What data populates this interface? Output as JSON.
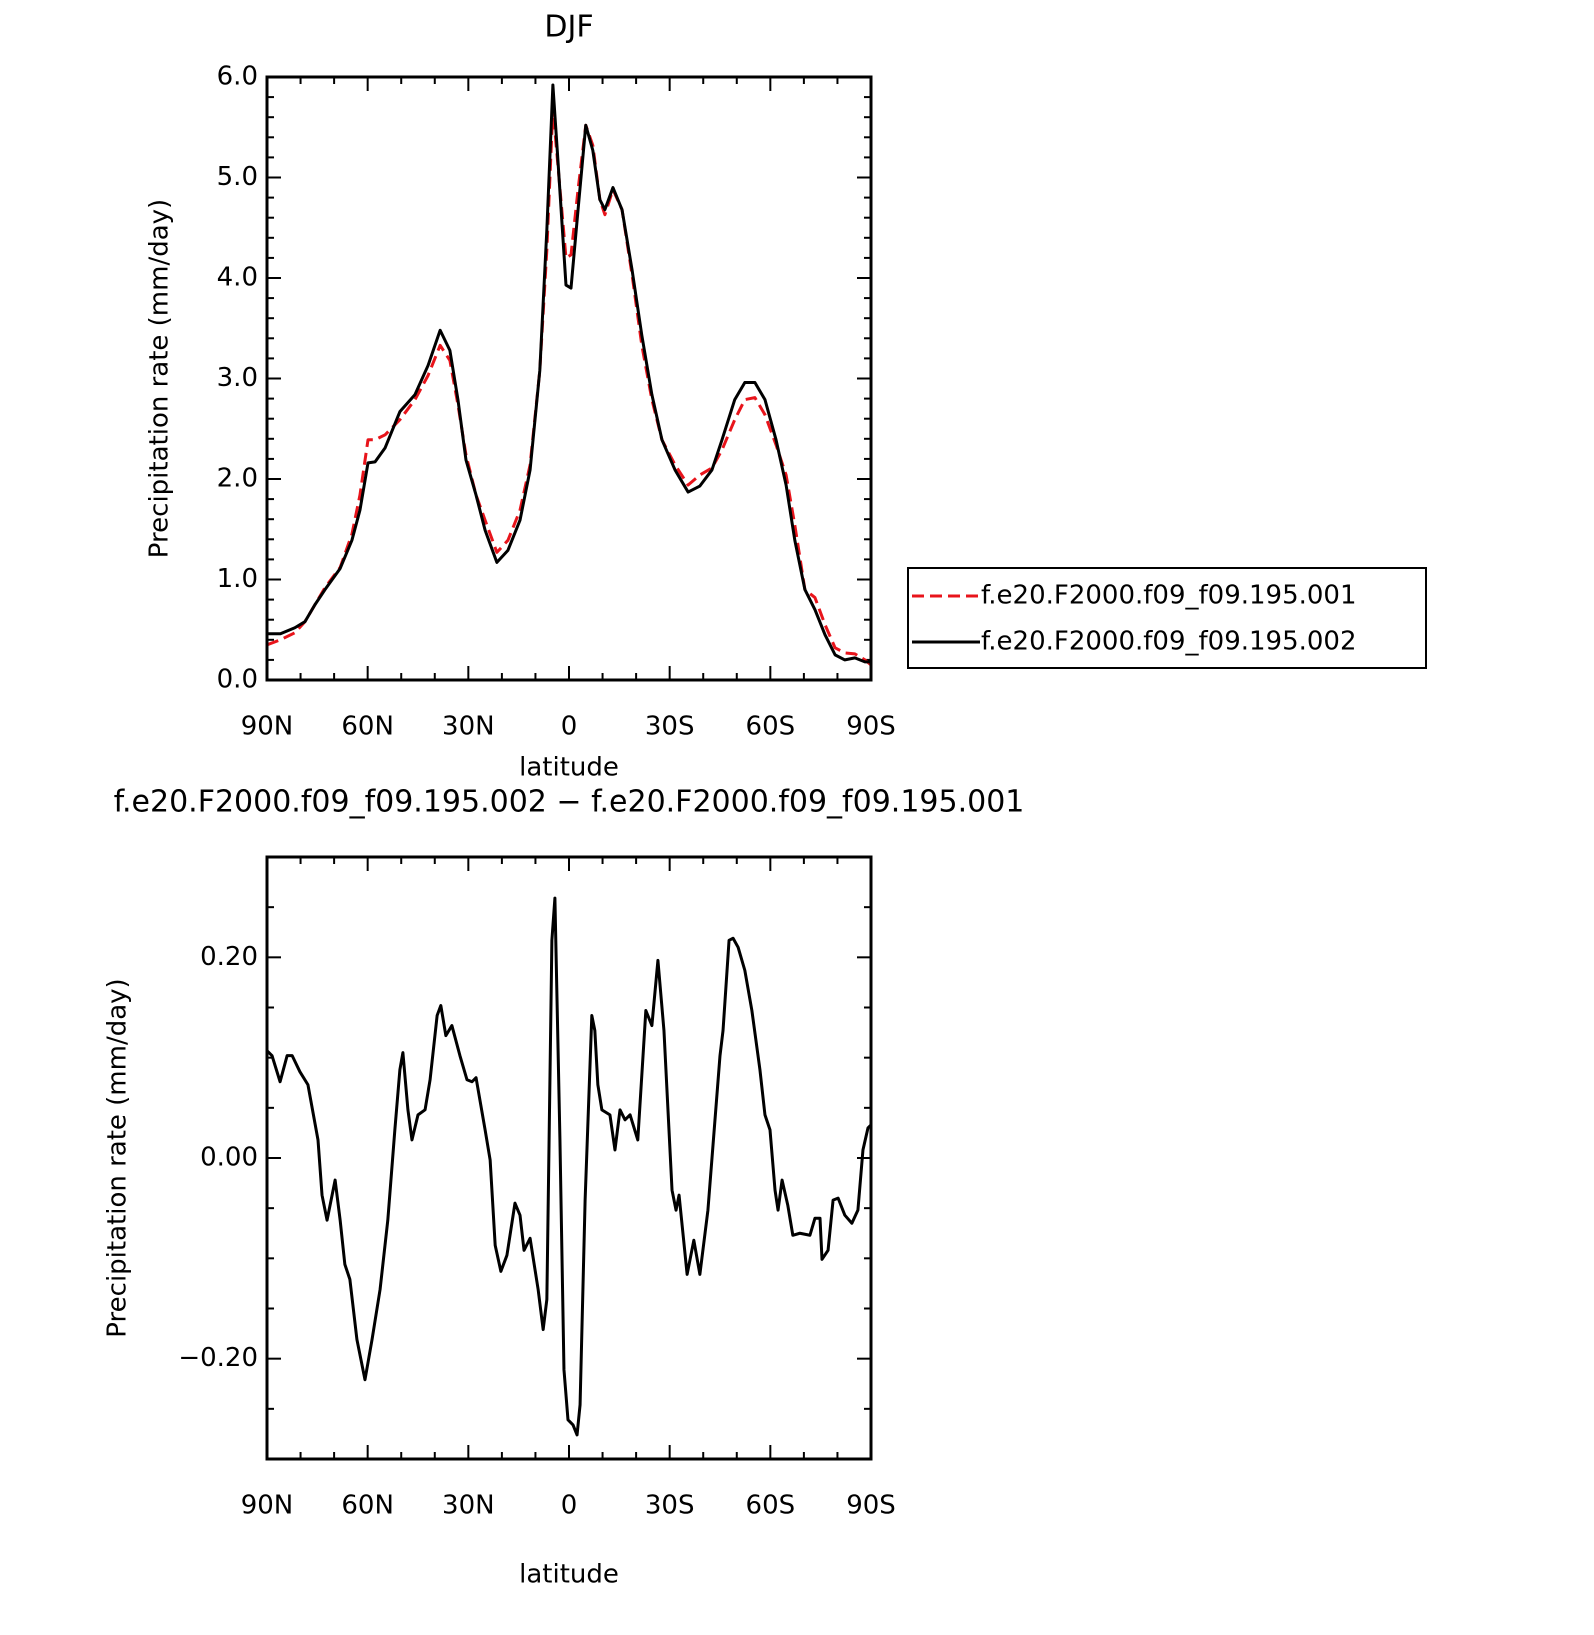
{
  "chart_data": [
    {
      "type": "line",
      "title": "DJF",
      "xlabel": "latitude",
      "ylabel": "Precipitation rate (mm/day)",
      "x": [
        90,
        86,
        81.7,
        78.7,
        75.7,
        72.7,
        68.2,
        64.7,
        62.3,
        59.9,
        57.8,
        54.8,
        50.4,
        45.9,
        42,
        38.4,
        35.5,
        33.1,
        30.7,
        27.7,
        25,
        21.5,
        18.2,
        14.6,
        11.6,
        8.7,
        6.6,
        4.8,
        3.3,
        0.9,
        -0.6,
        -2.7,
        -5,
        -7.1,
        -9.2,
        -10.7,
        -13.1,
        -15.8,
        -18.8,
        -21.7,
        -24.7,
        -27.7,
        -31.6,
        -35.5,
        -39,
        -42.6,
        -45.6,
        -49.4,
        -52.4,
        -55.4,
        -58.4,
        -61.7,
        -64.7,
        -67.3,
        -70.3,
        -73.3,
        -76.3,
        -79.3,
        -82.2,
        -85.2,
        -88.2,
        -90
      ],
      "series": [
        {
          "name": "f.e20.F2000.f09_f09.195.001",
          "color": "#e8141b",
          "line_style": "dashed",
          "values": [
            0.35,
            0.4,
            0.47,
            0.58,
            0.75,
            0.92,
            1.12,
            1.45,
            1.84,
            2.39,
            2.39,
            2.44,
            2.59,
            2.79,
            3.03,
            3.33,
            3.18,
            2.74,
            2.24,
            1.84,
            1.59,
            1.27,
            1.39,
            1.69,
            2.14,
            3.08,
            4.28,
            5.69,
            5.12,
            4.2,
            4.23,
            4.88,
            5.52,
            5.32,
            4.78,
            4.63,
            4.88,
            4.68,
            4.03,
            3.33,
            2.79,
            2.39,
            2.14,
            1.94,
            2.04,
            2.11,
            2.29,
            2.59,
            2.79,
            2.81,
            2.64,
            2.34,
            2.04,
            1.54,
            0.9,
            0.82,
            0.55,
            0.32,
            0.27,
            0.26,
            0.2,
            0.15
          ]
        },
        {
          "name": "f.e20.F2000.f09_f09.195.002",
          "color": "#000000",
          "line_style": "solid",
          "values": [
            0.46,
            0.46,
            0.52,
            0.58,
            0.75,
            0.9,
            1.11,
            1.39,
            1.69,
            2.16,
            2.17,
            2.31,
            2.67,
            2.84,
            3.13,
            3.48,
            3.28,
            2.79,
            2.19,
            1.84,
            1.49,
            1.17,
            1.29,
            1.59,
            2.09,
            3.08,
            4.48,
            5.92,
            5.17,
            3.93,
            3.9,
            4.68,
            5.52,
            5.27,
            4.78,
            4.68,
            4.9,
            4.68,
            4.08,
            3.43,
            2.84,
            2.39,
            2.09,
            1.87,
            1.93,
            2.09,
            2.39,
            2.79,
            2.96,
            2.96,
            2.79,
            2.39,
            1.94,
            1.39,
            0.9,
            0.7,
            0.45,
            0.25,
            0.2,
            0.22,
            0.18,
            0.18
          ]
        }
      ],
      "xlim": [
        90,
        -90
      ],
      "xticks": [
        {
          "value": 90,
          "label": "90N"
        },
        {
          "value": 60,
          "label": "60N"
        },
        {
          "value": 30,
          "label": "30N"
        },
        0,
        {
          "value": -30,
          "label": "30S"
        },
        {
          "value": -60,
          "label": "60S"
        },
        {
          "value": -90,
          "label": "90S"
        }
      ],
      "ylim": [
        0,
        6
      ],
      "yticks": [
        {
          "value": 0,
          "label": "0.0"
        },
        {
          "value": 1,
          "label": "1.0"
        },
        {
          "value": 2,
          "label": "2.0"
        },
        {
          "value": 3,
          "label": "3.0"
        },
        {
          "value": 4,
          "label": "4.0"
        },
        {
          "value": 5,
          "label": "5.0"
        },
        {
          "value": 6,
          "label": "6.0"
        }
      ],
      "legend": "right"
    },
    {
      "type": "line",
      "title": "f.e20.F2000.f09_f09.195.002 − f.e20.F2000.f09_f09.195.001",
      "xlabel": "latitude",
      "ylabel": "Precipitation rate (mm/day)",
      "x": [
        90,
        88.5,
        86.1,
        84,
        82.5,
        80.2,
        77.8,
        74.8,
        73.6,
        72.1,
        69.7,
        68.2,
        66.8,
        65.3,
        63.2,
        60.8,
        58.7,
        56.3,
        54,
        51.9,
        50.4,
        49.5,
        48,
        46.8,
        45,
        42.9,
        41.4,
        39.3,
        38.2,
        36.7,
        34.9,
        32.5,
        30.4,
        28.9,
        27.7,
        25,
        23.5,
        22,
        20.3,
        18.5,
        16.1,
        14.6,
        13.4,
        11.6,
        9.2,
        7.7,
        6.6,
        5.1,
        4.2,
        2.7,
        1.5,
        0.3,
        -1.2,
        -2.4,
        -3.3,
        -4.8,
        -6.8,
        -7.7,
        -8.6,
        -9.8,
        -12.2,
        -13.7,
        -15.2,
        -16.7,
        -18.2,
        -20.5,
        -22.9,
        -24.7,
        -26.5,
        -28.3,
        -30.7,
        -31.9,
        -32.8,
        -35.2,
        -37.2,
        -39,
        -41.4,
        -45,
        -45.9,
        -47.7,
        -48.9,
        -50.4,
        -52.4,
        -54.5,
        -56.9,
        -58.4,
        -59.9,
        -61.4,
        -62.3,
        -63.5,
        -65.2,
        -66.7,
        -68.8,
        -71.8,
        -73.3,
        -74.8,
        -75.4,
        -77.2,
        -78.7,
        -80.2,
        -82.2,
        -84.3,
        -86.1,
        -87.6,
        -89.1,
        -90
      ],
      "series": [
        {
          "name": "f.e20.F2000.f09_f09.195.002 − f.e20.F2000.f09_f09.195.001",
          "color": "#000000",
          "line_style": "solid",
          "values": [
            0.107,
            0.102,
            0.076,
            0.102,
            0.102,
            0.086,
            0.073,
            0.018,
            -0.037,
            -0.062,
            -0.022,
            -0.062,
            -0.106,
            -0.121,
            -0.181,
            -0.221,
            -0.181,
            -0.131,
            -0.062,
            0.028,
            0.088,
            0.105,
            0.048,
            0.018,
            0.043,
            0.048,
            0.078,
            0.142,
            0.152,
            0.122,
            0.132,
            0.102,
            0.078,
            0.076,
            0.08,
            0.028,
            -0.002,
            -0.087,
            -0.113,
            -0.097,
            -0.045,
            -0.057,
            -0.092,
            -0.08,
            -0.131,
            -0.171,
            -0.141,
            0.217,
            0.259,
            0.018,
            -0.211,
            -0.261,
            -0.266,
            -0.276,
            -0.246,
            -0.042,
            0.142,
            0.127,
            0.073,
            0.048,
            0.043,
            0.008,
            0.048,
            0.038,
            0.043,
            0.018,
            0.147,
            0.132,
            0.197,
            0.127,
            -0.032,
            -0.052,
            -0.037,
            -0.116,
            -0.082,
            -0.116,
            -0.052,
            0.102,
            0.127,
            0.217,
            0.219,
            0.21,
            0.187,
            0.147,
            0.088,
            0.043,
            0.028,
            -0.032,
            -0.052,
            -0.022,
            -0.047,
            -0.077,
            -0.075,
            -0.077,
            -0.06,
            -0.06,
            -0.101,
            -0.092,
            -0.042,
            -0.04,
            -0.057,
            -0.065,
            -0.052,
            0.008,
            0.03,
            0.033
          ]
        }
      ],
      "xlim": [
        90,
        -90
      ],
      "xticks": [
        {
          "value": 90,
          "label": "90N"
        },
        {
          "value": 60,
          "label": "60N"
        },
        {
          "value": 30,
          "label": "30N"
        },
        0,
        {
          "value": -30,
          "label": "30S"
        },
        {
          "value": -60,
          "label": "60S"
        },
        {
          "value": -90,
          "label": "90S"
        }
      ],
      "ylim": [
        -0.3,
        0.3
      ],
      "yticks": [
        {
          "value": -0.2,
          "label": "−0.20"
        },
        {
          "value": 0,
          "label": "0.00"
        },
        {
          "value": 0.2,
          "label": "0.20"
        }
      ]
    }
  ]
}
